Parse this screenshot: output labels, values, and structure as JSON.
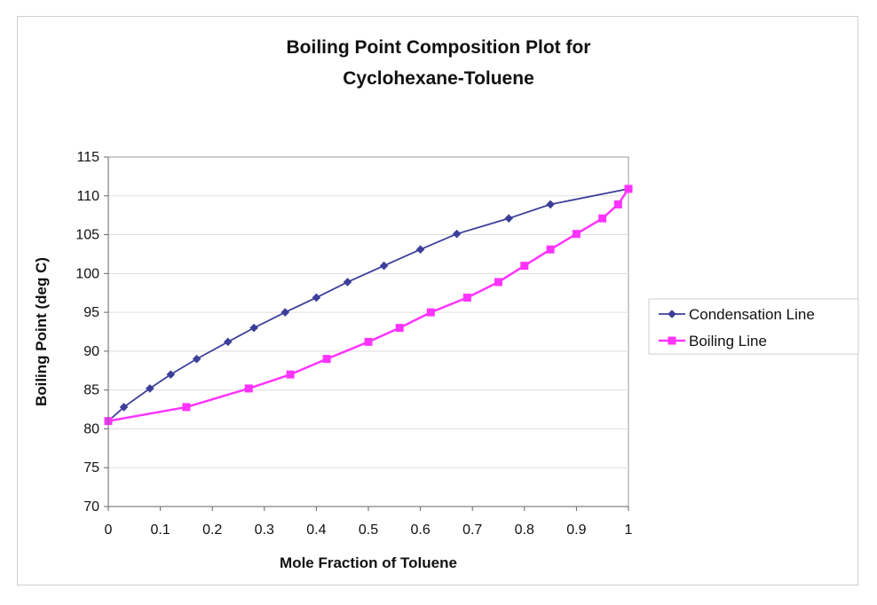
{
  "chart_data": {
    "type": "line",
    "title_lines": [
      "Boiling Point Composition Plot for",
      "Cyclohexane-Toluene"
    ],
    "xlabel": "Mole Fraction of Toluene",
    "ylabel": "Boiling Point (deg C)",
    "xlim": [
      0,
      1
    ],
    "ylim": [
      70,
      115
    ],
    "x_ticks": [
      0,
      0.1,
      0.2,
      0.3,
      0.4,
      0.5,
      0.6,
      0.7,
      0.8,
      0.9,
      1
    ],
    "x_tick_labels": [
      "0",
      "0.1",
      "0.2",
      "0.3",
      "0.4",
      "0.5",
      "0.6",
      "0.7",
      "0.8",
      "0.9",
      "1"
    ],
    "y_ticks": [
      70,
      75,
      80,
      85,
      90,
      95,
      100,
      105,
      110,
      115
    ],
    "y_tick_labels": [
      "70",
      "75",
      "80",
      "85",
      "90",
      "95",
      "100",
      "105",
      "110",
      "115"
    ],
    "grid": "horizontal",
    "legend_position": "right",
    "series": [
      {
        "name": "Condensation Line",
        "color": "#3c3f99",
        "marker": "diamond",
        "x": [
          0,
          0.03,
          0.08,
          0.12,
          0.17,
          0.23,
          0.28,
          0.34,
          0.4,
          0.46,
          0.53,
          0.6,
          0.67,
          0.77,
          0.85,
          1.0
        ],
        "y": [
          81,
          82.8,
          85.2,
          87,
          89,
          91.2,
          93,
          95,
          96.9,
          98.9,
          101,
          103.1,
          105.1,
          107.1,
          108.9,
          110.9
        ]
      },
      {
        "name": "Boiling Line",
        "color": "#ff33ff",
        "marker": "square",
        "x": [
          0,
          0.15,
          0.27,
          0.35,
          0.42,
          0.5,
          0.56,
          0.62,
          0.69,
          0.75,
          0.8,
          0.85,
          0.9,
          0.95,
          0.98,
          1.0
        ],
        "y": [
          81,
          82.8,
          85.2,
          87,
          89,
          91.2,
          93,
          95,
          96.9,
          98.9,
          101,
          103.1,
          105.1,
          107.1,
          108.9,
          110.9
        ]
      }
    ]
  }
}
